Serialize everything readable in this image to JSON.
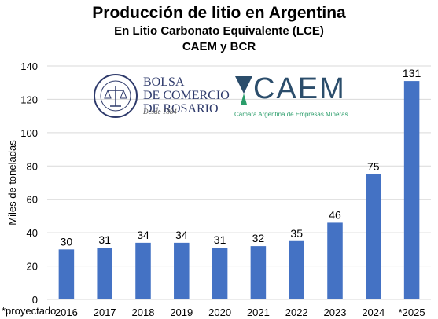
{
  "header": {
    "title": "Producción de litio en Argentina",
    "subtitle": "En Litio Carbonato Equivalente (LCE)",
    "source": "CAEM y BCR"
  },
  "logos": {
    "bcr_name": "BOLSA DE COMERCIO DE ROSARIO",
    "bcr_line1": "BOLSA",
    "bcr_line2": "DE COMERCIO",
    "bcr_line3": "DE ROSARIO",
    "bcr_since": "Desde 1884",
    "caem_word": "CAEM",
    "caem_sub": "Cámara Argentina de Empresas Mineras"
  },
  "note": "*proyectado",
  "colors": {
    "bar": "#4472c4",
    "grid": "#d9d9d9",
    "bcr": "#2e3a6b",
    "caem": "#2b4d6b",
    "caem_sub": "#2a9d6a"
  },
  "chart_data": {
    "type": "bar",
    "categories": [
      "2016",
      "2017",
      "2018",
      "2019",
      "2020",
      "2021",
      "2022",
      "2023",
      "2024",
      "*2025"
    ],
    "values": [
      30,
      31,
      34,
      34,
      31,
      32,
      35,
      46,
      75,
      131
    ],
    "data_labels": [
      "30",
      "31",
      "34",
      "34",
      "31",
      "32",
      "35",
      "46",
      "75",
      "131"
    ],
    "ylabel": "Miles de toneladas",
    "xlabel": "",
    "ylim": [
      0,
      140
    ],
    "yticks": [
      0,
      20,
      40,
      60,
      80,
      100,
      120,
      140
    ],
    "grid": true
  }
}
